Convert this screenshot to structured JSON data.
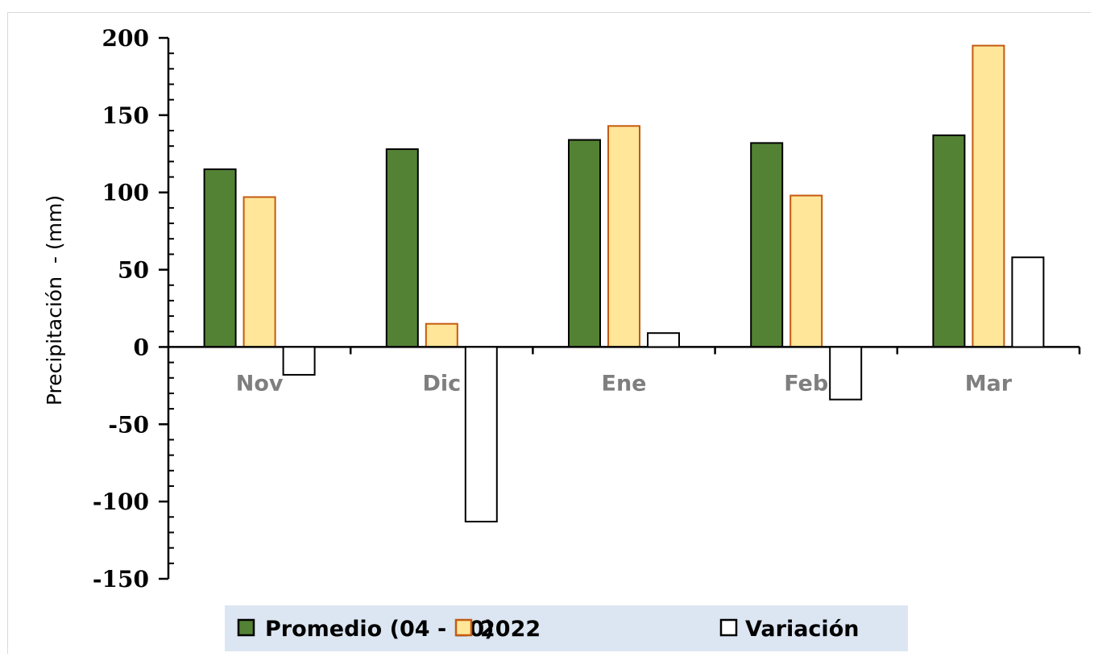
{
  "chart_data": {
    "type": "bar",
    "title": "",
    "xlabel": "",
    "ylabel": "Precipitación  - (mm)",
    "categories": [
      "Nov",
      "Dic",
      "Ene",
      "Feb",
      "Mar"
    ],
    "series": [
      {
        "name": "Promedio (04 - 20)",
        "values": [
          115,
          128,
          134,
          132,
          137
        ],
        "color": "#548235",
        "stroke": "#000000"
      },
      {
        "name": "2022",
        "values": [
          97,
          15,
          143,
          98,
          195
        ],
        "color": "#ffe699",
        "stroke": "#c55a11"
      },
      {
        "name": "Variación",
        "values": [
          -18,
          -113,
          9,
          -34,
          58
        ],
        "color": "#ffffff",
        "stroke": "#000000"
      }
    ],
    "ylim": [
      -150,
      200
    ],
    "yticks": [
      -150,
      -100,
      -50,
      0,
      50,
      100,
      150,
      200
    ],
    "ytick_labels": [
      "-150",
      "-100",
      "-50",
      "0",
      "50",
      "100",
      "150",
      "200"
    ],
    "grid": false,
    "legend_position": "bottom",
    "legend_background": "#dce6f2"
  }
}
